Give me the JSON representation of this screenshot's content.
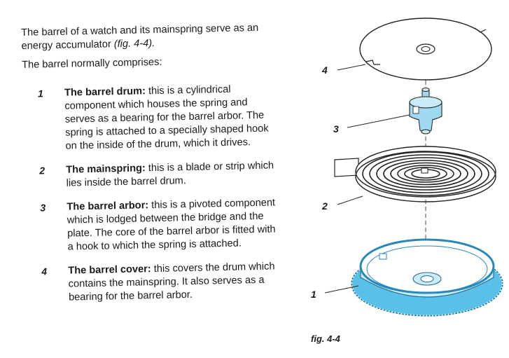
{
  "intro": {
    "sentence_start": "The barrel of a watch and its mainspring serve as an energy accumulator ",
    "sentence_ref": "(fig. 4-4).",
    "comprises": "The barrel normally comprises:"
  },
  "items": [
    {
      "num": "1",
      "term": "The barrel drum:",
      "desc": " this is a cylindrical component which houses the spring and serves as a bearing for the barrel arbor. The spring is attached to a specially shaped hook on the inside of the drum, which it drives."
    },
    {
      "num": "2",
      "term": "The mainspring:",
      "desc": " this is a blade or strip which lies inside the barrel drum."
    },
    {
      "num": "3",
      "term": "The barrel arbor:",
      "desc": " this is a pivoted component which is lodged between the bridge and the plate. The core of the barrel arbor is fitted with a hook to which the spring is attached."
    },
    {
      "num": "4",
      "term": "The barrel cover:",
      "desc": " this covers the drum which contains the mainspring. It also serves as a bearing for the barrel arbor."
    }
  ],
  "figure": {
    "labels": [
      "4",
      "3",
      "2",
      "1"
    ],
    "caption": "fig. 4-4",
    "colors": {
      "drum_accent": "#5bc0e8",
      "drum_fill": "#cdeaf7",
      "arbor_fill": "#9fd8f0",
      "line": "#222222"
    }
  }
}
